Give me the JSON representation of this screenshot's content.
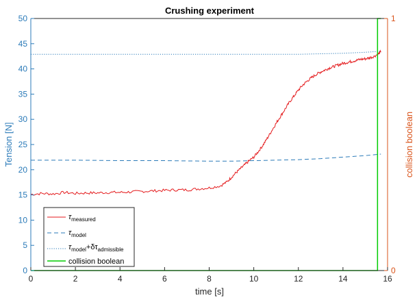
{
  "chart_data": {
    "type": "line",
    "title": "Crushing experiment",
    "xlabel": "time [s]",
    "ylabel": "Tension [N]",
    "ylabel_right": "collision boolean",
    "xlim": [
      0,
      16
    ],
    "ylim": [
      0,
      50
    ],
    "ylim_right": [
      0,
      1
    ],
    "xticks": [
      0,
      2,
      4,
      6,
      8,
      10,
      12,
      14,
      16
    ],
    "yticks": [
      0,
      5,
      10,
      15,
      20,
      25,
      30,
      35,
      40,
      45,
      50
    ],
    "yticks_right": [
      0,
      1
    ],
    "grid": false,
    "legend_position": "bottom-left",
    "series": [
      {
        "name": "τmeasured",
        "legend_main": "τ",
        "legend_sub": "measured",
        "color": "#e41a1c",
        "style": "solid",
        "x": [
          0,
          0.5,
          1,
          1.5,
          2,
          2.5,
          3,
          3.5,
          4,
          4.5,
          5,
          5.5,
          6,
          6.5,
          7,
          7.5,
          8,
          8.5,
          8.8,
          9,
          9.2,
          9.4,
          9.6,
          9.8,
          10,
          10.2,
          10.4,
          10.6,
          10.8,
          11,
          11.2,
          11.4,
          11.6,
          11.8,
          12,
          12.2,
          12.4,
          12.6,
          12.8,
          13,
          13.2,
          13.4,
          13.6,
          13.8,
          14,
          14.2,
          14.4,
          14.6,
          14.8,
          15,
          15.2,
          15.4,
          15.6,
          15.7
        ],
        "values": [
          15.1,
          15.3,
          15.2,
          15.5,
          15.3,
          15.4,
          15.4,
          15.5,
          15.5,
          15.6,
          15.7,
          15.8,
          15.9,
          16.0,
          16.0,
          16.2,
          16.4,
          16.8,
          17.6,
          18.5,
          19.4,
          20.2,
          21.0,
          21.8,
          22.5,
          23.6,
          24.8,
          26.2,
          27.7,
          29.2,
          30.6,
          32.0,
          33.4,
          34.6,
          35.8,
          36.8,
          37.6,
          38.3,
          38.9,
          39.4,
          39.8,
          40.2,
          40.5,
          40.8,
          41.1,
          41.3,
          41.5,
          41.7,
          41.9,
          42.0,
          42.2,
          42.5,
          43.0,
          43.5
        ]
      },
      {
        "name": "τmodel",
        "legend_main": "τ",
        "legend_sub": "model",
        "color": "#2a7ab8",
        "style": "dashed",
        "x": [
          0,
          2,
          4,
          6,
          8,
          9,
          10,
          11,
          12,
          13,
          14,
          15,
          15.7
        ],
        "values": [
          21.9,
          21.9,
          21.8,
          21.8,
          21.7,
          21.7,
          21.8,
          21.9,
          22.0,
          22.2,
          22.5,
          22.8,
          23.1
        ]
      },
      {
        "name": "τmodel+δτadmissible",
        "legend_main": "τ",
        "legend_sub": "model",
        "legend_plus": "+δτ",
        "legend_sub2": "admissible",
        "color": "#2a7ab8",
        "style": "dotted",
        "x": [
          0,
          2,
          4,
          6,
          8,
          10,
          12,
          13,
          14,
          15,
          15.7
        ],
        "values": [
          42.9,
          42.9,
          42.9,
          42.9,
          42.9,
          42.9,
          42.9,
          43.0,
          43.1,
          43.3,
          43.5
        ]
      },
      {
        "name": "collision boolean",
        "legend_main": "collision boolean",
        "color": "#00cc00",
        "style": "solid",
        "axis": "right",
        "x": [
          0,
          15.55,
          15.55,
          15.7
        ],
        "values": [
          0,
          0,
          1,
          1
        ]
      }
    ]
  }
}
